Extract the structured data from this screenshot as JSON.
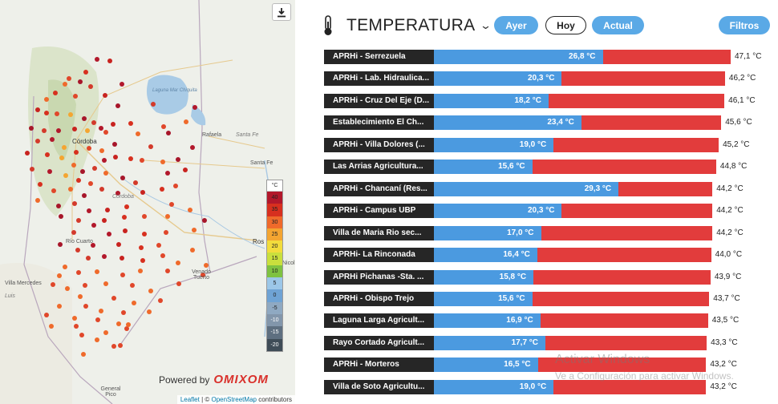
{
  "map": {
    "download_icon": "download-icon",
    "places": {
      "laguna": "Laguna Mar Chiquita",
      "cordoba_city": "Córdoba",
      "cordoba_region": "Córdoba",
      "rafaela": "Rafaela",
      "santa_fe_region": "Santa Fe",
      "santa_fe_city": "Santa Fe",
      "rio_cuarto": "Río Cuarto",
      "villa_mercedes": "Villa Mercedes",
      "venado_tuerto": "Venado Tuerto",
      "rosario": "Ros",
      "san_nicolas": "Nicol",
      "san_luis": "Luis",
      "general_pico": "General Pico"
    },
    "legend": {
      "unit": "°C",
      "steps": [
        {
          "label": "40",
          "color": "#b2182b"
        },
        {
          "label": "35",
          "color": "#d7301f"
        },
        {
          "label": "30",
          "color": "#ef6a2b"
        },
        {
          "label": "25",
          "color": "#f4a531"
        },
        {
          "label": "20",
          "color": "#f2dc3c"
        },
        {
          "label": "15",
          "color": "#c9df3d"
        },
        {
          "label": "10",
          "color": "#7fc241"
        },
        {
          "label": "5",
          "color": "#9cc7e8"
        },
        {
          "label": "0",
          "color": "#6fa3d4"
        },
        {
          "label": "-5",
          "color": "#8fa9c2"
        },
        {
          "label": "-10",
          "color": "#8296ab"
        },
        {
          "label": "-15",
          "color": "#5e6f80"
        },
        {
          "label": "-20",
          "color": "#3f4c57"
        }
      ]
    },
    "powered_by": "Powered by",
    "brand": "OMIXOM",
    "attribution": {
      "leaflet": "Leaflet",
      "sep": " | © ",
      "osm": "OpenStreetMap",
      "contributors": " contributors"
    }
  },
  "panel": {
    "title": "TEMPERATURA",
    "thermometer_icon": "thermometer-icon",
    "dropdown_icon": "chevron-down-icon",
    "buttons": {
      "ayer": "Ayer",
      "hoy": "Hoy",
      "actual": "Actual",
      "filtros": "Filtros"
    },
    "colors": {
      "min_bar": "#4b9ae0",
      "max_bar": "#e23c3c",
      "name_bg": "#262626"
    },
    "rows": [
      {
        "name": "APRHi - Serrezuela",
        "min": "26,8 °C",
        "max": "47,1 °C",
        "min_val": 26.8,
        "max_val": 47.1
      },
      {
        "name": "APRHi - Lab. Hidraulica...",
        "min": "20,3 °C",
        "max": "46,2 °C",
        "min_val": 20.3,
        "max_val": 46.2
      },
      {
        "name": "APRHi - Cruz Del Eje (D...",
        "min": "18,2 °C",
        "max": "46,1 °C",
        "min_val": 18.2,
        "max_val": 46.1
      },
      {
        "name": "Establecimiento El Ch...",
        "min": "23,4 °C",
        "max": "45,6 °C",
        "min_val": 23.4,
        "max_val": 45.6
      },
      {
        "name": "APRHi - Villa Dolores (...",
        "min": "19,0 °C",
        "max": "45,2 °C",
        "min_val": 19.0,
        "max_val": 45.2
      },
      {
        "name": "Las Arrias Agricultura...",
        "min": "15,6 °C",
        "max": "44,8 °C",
        "min_val": 15.6,
        "max_val": 44.8
      },
      {
        "name": "APRHi - Chancaní (Res...",
        "min": "29,3 °C",
        "max": "44,2 °C",
        "min_val": 29.3,
        "max_val": 44.2
      },
      {
        "name": "APRHi - Campus UBP",
        "min": "20,3 °C",
        "max": "44,2 °C",
        "min_val": 20.3,
        "max_val": 44.2
      },
      {
        "name": "Villa de Maria Rio sec...",
        "min": "17,0 °C",
        "max": "44,2 °C",
        "min_val": 17.0,
        "max_val": 44.2
      },
      {
        "name": "APRHi- La Rinconada",
        "min": "16,4 °C",
        "max": "44,0 °C",
        "min_val": 16.4,
        "max_val": 44.0
      },
      {
        "name": "APRHi Pichanas -Sta. ...",
        "min": "15,8 °C",
        "max": "43,9 °C",
        "min_val": 15.8,
        "max_val": 43.9
      },
      {
        "name": "APRHi - Obispo Trejo",
        "min": "15,6 °C",
        "max": "43,7 °C",
        "min_val": 15.6,
        "max_val": 43.7
      },
      {
        "name": "Laguna Larga Agricult...",
        "min": "16,9 °C",
        "max": "43,5 °C",
        "min_val": 16.9,
        "max_val": 43.5
      },
      {
        "name": "Rayo Cortado Agricult...",
        "min": "17,7 °C",
        "max": "43,3 °C",
        "min_val": 17.7,
        "max_val": 43.3
      },
      {
        "name": "APRHi - Morteros",
        "min": "16,5 °C",
        "max": "43,2 °C",
        "min_val": 16.5,
        "max_val": 43.2
      },
      {
        "name": "Villa de Soto Agricultu...",
        "min": "19,0 °C",
        "max": "43,2 °C",
        "min_val": 19.0,
        "max_val": 43.2
      }
    ]
  },
  "watermark": {
    "line1": "Activar Windows",
    "line2": "Ve a Configuración para activar Windows."
  }
}
